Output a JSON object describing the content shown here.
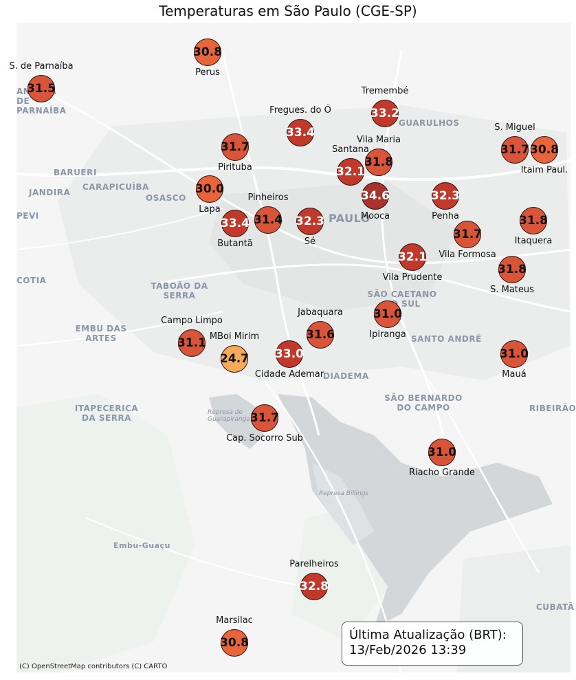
{
  "title": "Temperaturas em São Paulo (CGE-SP)",
  "update": {
    "line1": "Última Atualização (BRT):",
    "line2": "13/Feb/2026 13:39"
  },
  "attribution": "(C) OpenStreetMap contributors (C) CARTO",
  "colors": {
    "hot": "#c0392b",
    "warm": "#d9553a",
    "orange": "#e8643a",
    "dark": "#a8322c",
    "cool": "#f5a95a"
  },
  "basemap_places": [
    {
      "name": "GUARULHOS"
    },
    {
      "name": "BARUERI"
    },
    {
      "name": "CARAPICUÍBA"
    },
    {
      "name": "JANDIRA"
    },
    {
      "name": "OSASCO"
    },
    {
      "name": "PAULO"
    },
    {
      "name": "TABOÃO DA SERRA"
    },
    {
      "name": "SÃO CAETANO DO SUL"
    },
    {
      "name": "EMBU DAS ARTES"
    },
    {
      "name": "SANTO ANDRÉ"
    },
    {
      "name": "DIADEMA"
    },
    {
      "name": "SÃO BERNARDO DO CAMPO"
    },
    {
      "name": "ITAPECERICA DA SERRA"
    },
    {
      "name": "RIBEIRÃO"
    },
    {
      "name": "Embu-Guaçu"
    },
    {
      "name": "CUBATÃ"
    },
    {
      "name": "COTIA"
    },
    {
      "name": "PEVI"
    },
    {
      "name": "Represa Billings"
    },
    {
      "name": "Represa de Guarapiranga"
    },
    {
      "name": "ANTANA DE PARNAÍBA"
    }
  ],
  "stations": [
    {
      "name": "Perus",
      "value": "30.8",
      "tone": "orange",
      "text": "dark"
    },
    {
      "name": "S. de Parnaíba",
      "value": "31.5",
      "tone": "warm",
      "text": "dark"
    },
    {
      "name": "Tremembé",
      "value": "33.2",
      "tone": "hot",
      "text": "light"
    },
    {
      "name": "Fregues. do Ó",
      "value": "33.4",
      "tone": "hot",
      "text": "light"
    },
    {
      "name": "S. Miguel",
      "value": "31.7",
      "tone": "warm",
      "text": "dark"
    },
    {
      "name": "Itaim Paul.",
      "value": "30.8",
      "tone": "orange",
      "text": "dark"
    },
    {
      "name": "Pirituba",
      "value": "31.7",
      "tone": "warm",
      "text": "dark"
    },
    {
      "name": "Vila Maria",
      "value": "31.8",
      "tone": "warm",
      "text": "dark"
    },
    {
      "name": "Santana",
      "value": "32.1",
      "tone": "hot",
      "text": "light"
    },
    {
      "name": "Lapa",
      "value": "30.0",
      "tone": "orange",
      "text": "dark"
    },
    {
      "name": "Mooca",
      "value": "34.6",
      "tone": "dark",
      "text": "light"
    },
    {
      "name": "Penha",
      "value": "32.3",
      "tone": "hot",
      "text": "light"
    },
    {
      "name": "Pinheiros",
      "value": "31.4",
      "tone": "warm",
      "text": "dark"
    },
    {
      "name": "Butantã",
      "value": "33.4",
      "tone": "hot",
      "text": "light"
    },
    {
      "name": "Sé",
      "value": "32.3",
      "tone": "hot",
      "text": "light"
    },
    {
      "name": "Itaquera",
      "value": "31.8",
      "tone": "warm",
      "text": "dark"
    },
    {
      "name": "Vila Formosa",
      "value": "31.7",
      "tone": "warm",
      "text": "dark"
    },
    {
      "name": "Vila Prudente",
      "value": "32.1",
      "tone": "hot",
      "text": "light"
    },
    {
      "name": "S. Mateus",
      "value": "31.8",
      "tone": "warm",
      "text": "dark"
    },
    {
      "name": "Ipiranga",
      "value": "31.0",
      "tone": "warm",
      "text": "dark"
    },
    {
      "name": "Jabaquara",
      "value": "31.6",
      "tone": "warm",
      "text": "dark"
    },
    {
      "name": "Campo Limpo",
      "value": "31.1",
      "tone": "warm",
      "text": "dark"
    },
    {
      "name": "MBoi Mirim",
      "value": "24.7",
      "tone": "cool",
      "text": "dark"
    },
    {
      "name": "Cidade Ademar",
      "value": "33.0",
      "tone": "hot",
      "text": "light"
    },
    {
      "name": "Mauá",
      "value": "31.0",
      "tone": "warm",
      "text": "dark"
    },
    {
      "name": "Cap. Socorro Sub",
      "value": "31.7",
      "tone": "warm",
      "text": "dark"
    },
    {
      "name": "Riacho Grande",
      "value": "31.0",
      "tone": "warm",
      "text": "dark"
    },
    {
      "name": "Parelheiros",
      "value": "32.8",
      "tone": "hot",
      "text": "light"
    },
    {
      "name": "Marsilac",
      "value": "30.8",
      "tone": "orange",
      "text": "dark"
    }
  ]
}
